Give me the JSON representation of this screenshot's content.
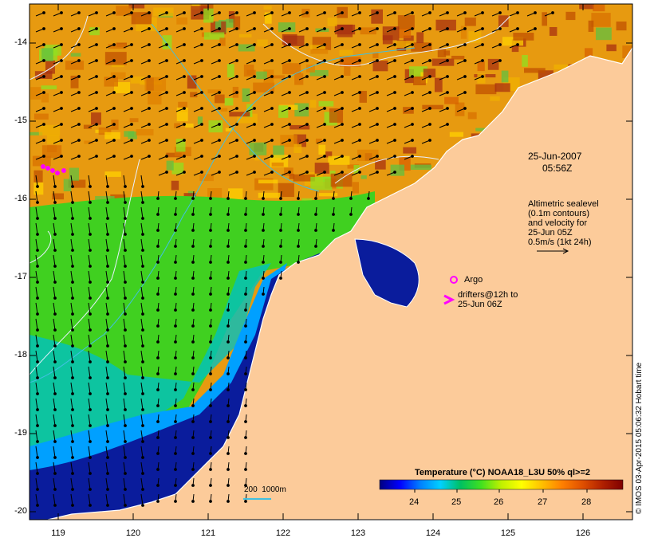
{
  "map": {
    "timestamp_date": "25-Jun-2007",
    "timestamp_time": "05:56Z",
    "altimetry_text": "Altimetric sealevel\n(0.1m contours)\nand velocity for\n25-Jun 05Z\n0.5m/s (1kt 24h)",
    "argo_label": "Argo",
    "drifters_text": "drifters@12h to\n25-Jun 06Z",
    "depth_label": "200  1000m",
    "credit": "© IMOS 03-Apr-2015 05:06:32 Hobart time",
    "lat_ticks": [
      "-14",
      "-15",
      "-16",
      "-17",
      "-18",
      "-19",
      "-20"
    ],
    "lon_ticks": [
      "119",
      "120",
      "121",
      "122",
      "123",
      "124",
      "125",
      "126"
    ]
  },
  "colorbar": {
    "title": "Temperature (°C) NOAA18_L3U 50% ql>=2",
    "ticks": [
      "24",
      "25",
      "26",
      "27",
      "28"
    ],
    "colors": [
      "#00007f",
      "#0000ff",
      "#0080ff",
      "#00d0ff",
      "#00c060",
      "#40e020",
      "#c0f000",
      "#ffff00",
      "#ffc000",
      "#ff8000",
      "#e05000",
      "#b02000",
      "#7f0000"
    ]
  },
  "colors": {
    "land": "#fccb9a",
    "coast": "#ffffff",
    "contour": "#e8f0ff",
    "isobath": "#40c0e0",
    "drifter": "#ff00ff"
  }
}
